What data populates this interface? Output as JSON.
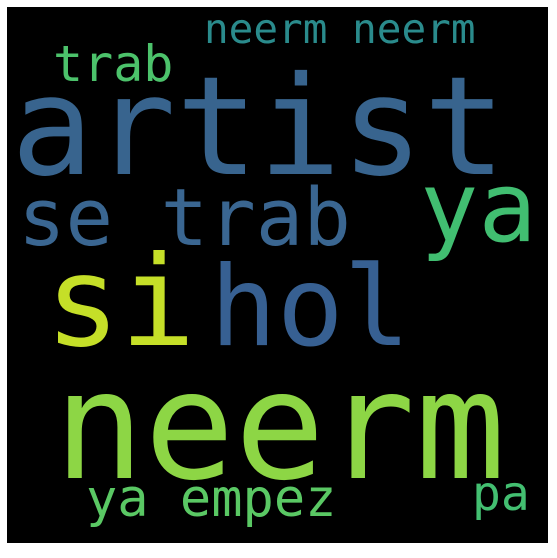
{
  "background_color": "#000000",
  "frame_color": "#ffffff",
  "words": [
    {
      "id": "neerm-neerm",
      "text": "neerm neerm",
      "color": "#2a8b8c"
    },
    {
      "id": "trab",
      "text": "trab",
      "color": "#4cc26b"
    },
    {
      "id": "artist",
      "text": "artist",
      "color": "#38648e"
    },
    {
      "id": "se-trab",
      "text": "se trab",
      "color": "#3a6691"
    },
    {
      "id": "ya-right",
      "text": "ya",
      "color": "#41be71"
    },
    {
      "id": "si",
      "text": "si",
      "color": "#c5df28"
    },
    {
      "id": "hol",
      "text": "hol",
      "color": "#376092"
    },
    {
      "id": "neerm",
      "text": "neerm",
      "color": "#8dd645"
    },
    {
      "id": "ya-empez",
      "text": "ya empez",
      "color": "#5ac864"
    },
    {
      "id": "pa",
      "text": "pa",
      "color": "#43bf71"
    }
  ]
}
